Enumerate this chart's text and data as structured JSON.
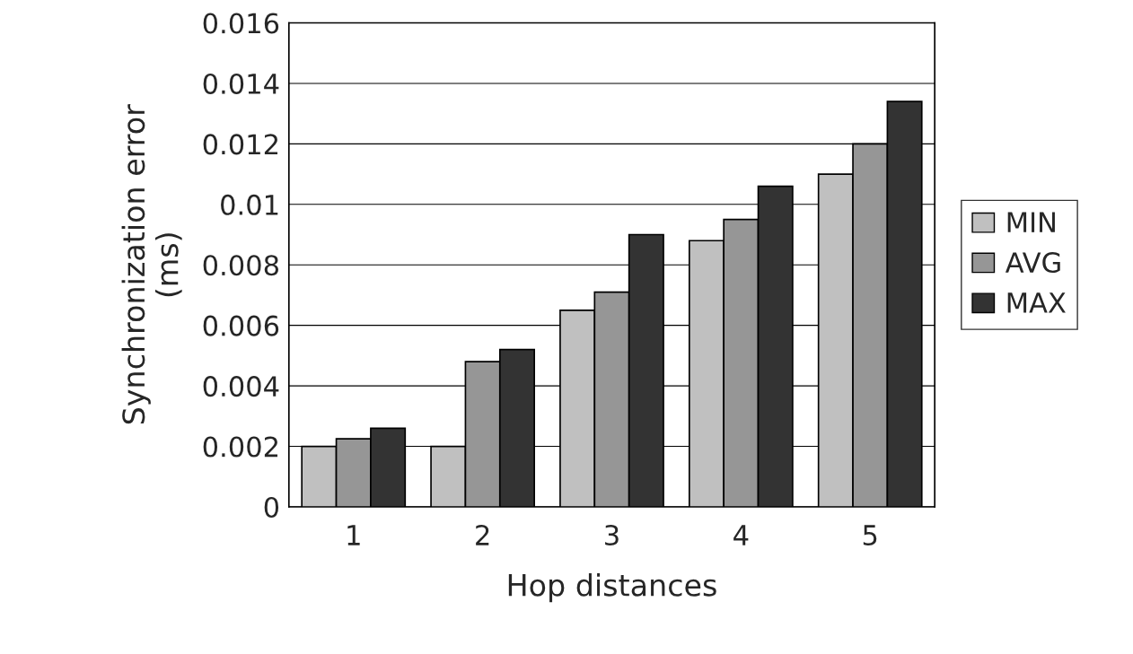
{
  "chart_data": {
    "type": "bar",
    "xlabel": "Hop distances",
    "ylabel": "Synchronization error\n(ms)",
    "categories": [
      "1",
      "2",
      "3",
      "4",
      "5"
    ],
    "series": [
      {
        "name": "MIN",
        "color": "#c0c0c0",
        "values": [
          0.002,
          0.002,
          0.0065,
          0.0088,
          0.011
        ]
      },
      {
        "name": "AVG",
        "color": "#969696",
        "values": [
          0.00225,
          0.0048,
          0.0071,
          0.0095,
          0.012
        ]
      },
      {
        "name": "MAX",
        "color": "#333333",
        "values": [
          0.0026,
          0.0052,
          0.009,
          0.0106,
          0.0134
        ]
      }
    ],
    "ylim": [
      0,
      0.016
    ],
    "yticks": [
      0,
      0.002,
      0.004,
      0.006,
      0.008,
      0.01,
      0.012,
      0.014,
      0.016
    ],
    "grid": "y",
    "legend": "right"
  }
}
